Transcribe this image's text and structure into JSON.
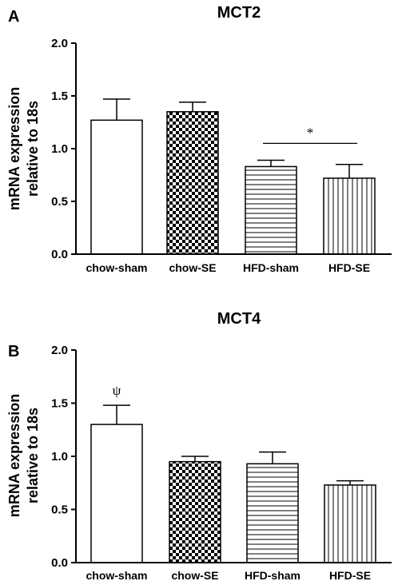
{
  "chart_data": [
    {
      "panel": "A",
      "type": "bar",
      "title": "MCT2",
      "ylabel": "mRNA expression relative to 18s",
      "ylabel_lines": [
        "mRNA expression",
        "relative to 18s"
      ],
      "xlabel": "",
      "ylim": [
        0,
        2.0
      ],
      "yticks": [
        "0.0",
        "0.5",
        "1.0",
        "1.5",
        "2.0"
      ],
      "categories": [
        "chow-sham",
        "chow-SE",
        "HFD-sham",
        "HFD-SE"
      ],
      "values": [
        1.27,
        1.35,
        0.83,
        0.72
      ],
      "errors": [
        0.2,
        0.09,
        0.06,
        0.13
      ],
      "patterns": [
        "white",
        "checker",
        "horizontal-lines",
        "vertical-lines"
      ],
      "annotations": [
        {
          "text": "*",
          "between": [
            "HFD-sham",
            "HFD-SE"
          ],
          "y": 1.05
        }
      ]
    },
    {
      "panel": "B",
      "type": "bar",
      "title": "MCT4",
      "ylabel": "mRNA expression relative to 18s",
      "ylabel_lines": [
        "mRNA expression",
        "relative to 18s"
      ],
      "xlabel": "",
      "ylim": [
        0,
        2.0
      ],
      "yticks": [
        "0.0",
        "0.5",
        "1.0",
        "1.5",
        "2.0"
      ],
      "categories": [
        "chow-sham",
        "chow-SE",
        "HFD-sham",
        "HFD-SE"
      ],
      "values": [
        1.3,
        0.95,
        0.93,
        0.73
      ],
      "errors": [
        0.18,
        0.05,
        0.11,
        0.04
      ],
      "patterns": [
        "white",
        "checker",
        "horizontal-lines",
        "vertical-lines"
      ],
      "annotations": [
        {
          "text": "ψ",
          "on": "chow-sham",
          "y": 1.58
        }
      ]
    }
  ]
}
